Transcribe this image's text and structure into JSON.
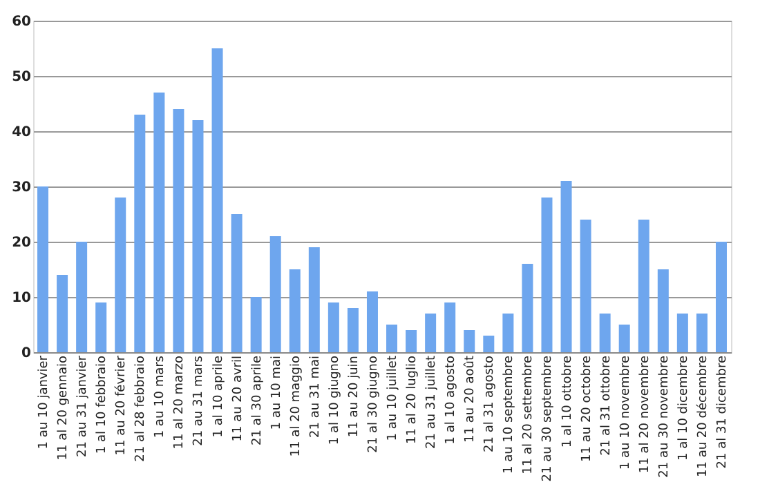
{
  "chart_data": {
    "type": "bar",
    "categories": [
      "1 au 10 janvier",
      "11 al 20 gennaio",
      "21 au 31 janvier",
      "1 al 10 febbraio",
      "11 au 20 février",
      "21 al 28 febbraio",
      "1 au 10 mars",
      "11 al 20 marzo",
      "21 au 31 mars",
      "1 al 10 aprile",
      "11 au 20 avril",
      "21 al 30 aprile",
      "1 au 10 mai",
      "11 al 20 maggio",
      "21 au 31 mai",
      "1 al 10 giugno",
      "11 au 20 juin",
      "21 al 30 giugno",
      "1 au 10 juillet",
      "11 al 20 luglio",
      "21 au 31 juillet",
      "1 al 10 agosto",
      "11 au 20 août",
      "21 al 31 agosto",
      "1 au 10 septembre",
      "11 al 20 settembre",
      "21 au 30 septembre",
      "1 al 10 ottobre",
      "11 au 20 octobre",
      "21 al 31 ottobre",
      "1 au 10 novembre",
      "11 al 20 novembre",
      "21 au 30 novembre",
      "1 al 10 dicembre",
      "11 au 20 décembre",
      "21 al 31 dicembre"
    ],
    "values": [
      30,
      14,
      20,
      9,
      28,
      43,
      47,
      44,
      42,
      55,
      25,
      10,
      21,
      15,
      19,
      9,
      8,
      11,
      5,
      4,
      7,
      9,
      4,
      3,
      7,
      16,
      28,
      31,
      24,
      7,
      5,
      24,
      15,
      7,
      7,
      20
    ],
    "color": "#6ea6ee",
    "ylim": [
      0,
      60
    ],
    "yticks": [
      0,
      10,
      20,
      30,
      40,
      50,
      60
    ],
    "grid": "y"
  }
}
